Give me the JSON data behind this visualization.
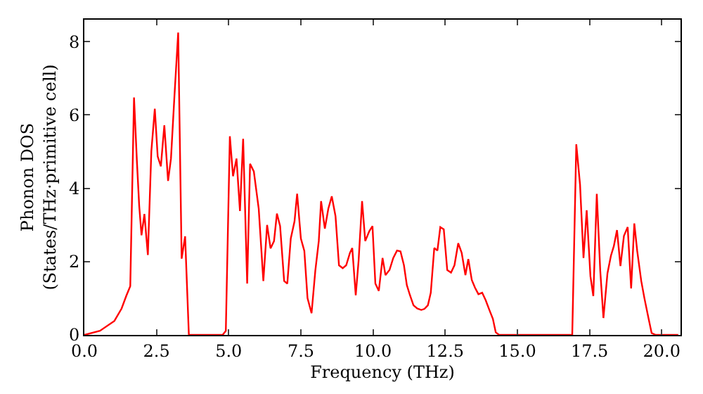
{
  "chart_data": {
    "type": "line",
    "xlabel": "Frequency (THz)",
    "ylabel": "Phonon DOS\n(States/THz·primitive cell)",
    "x": [
      0,
      0.54,
      1.04,
      1.29,
      1.45,
      1.59,
      1.72,
      1.82,
      1.9,
      1.98,
      2.08,
      2.2,
      2.32,
      2.44,
      2.54,
      2.65,
      2.77,
      2.9,
      3.0,
      3.12,
      3.25,
      3.37,
      3.49,
      3.62,
      4.79,
      4.9,
      5.04,
      5.15,
      5.27,
      5.39,
      5.5,
      5.64,
      5.74,
      5.87,
      6.04,
      6.2,
      6.33,
      6.45,
      6.57,
      6.67,
      6.78,
      6.92,
      7.03,
      7.15,
      7.28,
      7.37,
      7.5,
      7.62,
      7.73,
      7.87,
      8.0,
      8.12,
      8.2,
      8.33,
      8.45,
      8.57,
      8.7,
      8.82,
      8.95,
      9.07,
      9.2,
      9.28,
      9.4,
      9.5,
      9.62,
      9.73,
      9.87,
      9.98,
      10.08,
      10.2,
      10.33,
      10.43,
      10.57,
      10.7,
      10.83,
      10.95,
      11.07,
      11.17,
      11.28,
      11.4,
      11.53,
      11.67,
      11.78,
      11.9,
      12.0,
      12.12,
      12.23,
      12.33,
      12.45,
      12.57,
      12.7,
      12.82,
      12.95,
      13.07,
      13.2,
      13.3,
      13.42,
      13.53,
      13.65,
      13.78,
      13.9,
      14.03,
      14.15,
      14.25,
      14.37,
      16.9,
      17.04,
      17.17,
      17.29,
      17.4,
      17.53,
      17.63,
      17.75,
      17.87,
      17.98,
      18.12,
      18.24,
      18.34,
      18.45,
      18.57,
      18.69,
      18.82,
      18.94,
      19.05,
      19.15,
      19.29,
      19.4,
      19.54,
      19.65,
      19.79,
      20.57
    ],
    "series": [
      {
        "color": "#ff0000",
        "values": [
          0,
          0.11,
          0.38,
          0.72,
          1.06,
          1.33,
          6.48,
          4.74,
          3.52,
          2.72,
          3.3,
          2.18,
          5.01,
          6.17,
          4.87,
          4.6,
          5.72,
          4.2,
          4.81,
          6.51,
          8.25,
          2.08,
          2.69,
          0,
          0,
          0.11,
          5.42,
          4.33,
          4.81,
          3.38,
          5.35,
          1.4,
          4.67,
          4.46,
          3.44,
          1.47,
          3.0,
          2.36,
          2.56,
          3.31,
          2.97,
          1.47,
          1.4,
          2.63,
          3.1,
          3.85,
          2.63,
          2.29,
          1.0,
          0.59,
          1.75,
          2.56,
          3.65,
          2.9,
          3.44,
          3.78,
          3.24,
          1.9,
          1.82,
          1.9,
          2.24,
          2.37,
          1.08,
          2.03,
          3.65,
          2.56,
          2.83,
          2.97,
          1.4,
          1.2,
          2.1,
          1.63,
          1.77,
          2.1,
          2.3,
          2.28,
          1.9,
          1.36,
          1.08,
          0.81,
          0.72,
          0.68,
          0.71,
          0.81,
          1.15,
          2.37,
          2.3,
          2.94,
          2.88,
          1.77,
          1.7,
          1.9,
          2.5,
          2.24,
          1.63,
          2.07,
          1.5,
          1.29,
          1.11,
          1.15,
          0.95,
          0.68,
          0.44,
          0.07,
          0,
          0,
          5.2,
          4.1,
          2.1,
          3.4,
          1.6,
          1.06,
          3.85,
          1.75,
          0.46,
          1.68,
          2.16,
          2.42,
          2.86,
          1.88,
          2.7,
          2.94,
          1.27,
          3.04,
          2.29,
          1.47,
          1.0,
          0.46,
          0.05,
          0,
          0
        ]
      }
    ],
    "xlim": [
      0,
      20.65
    ],
    "ylim": [
      0,
      8.6
    ],
    "xticks": [
      {
        "value": 0,
        "label": "0.0"
      },
      {
        "value": 2.5,
        "label": "2.5"
      },
      {
        "value": 5,
        "label": "5.0"
      },
      {
        "value": 7.5,
        "label": "7.5"
      },
      {
        "value": 10,
        "label": "10.0"
      },
      {
        "value": 12.5,
        "label": "12.5"
      },
      {
        "value": 15,
        "label": "15.0"
      },
      {
        "value": 17.5,
        "label": "17.5"
      },
      {
        "value": 20,
        "label": "20.0"
      }
    ],
    "yticks": [
      0,
      2,
      4,
      6,
      8
    ],
    "marker": "none",
    "line_style": "solid"
  }
}
